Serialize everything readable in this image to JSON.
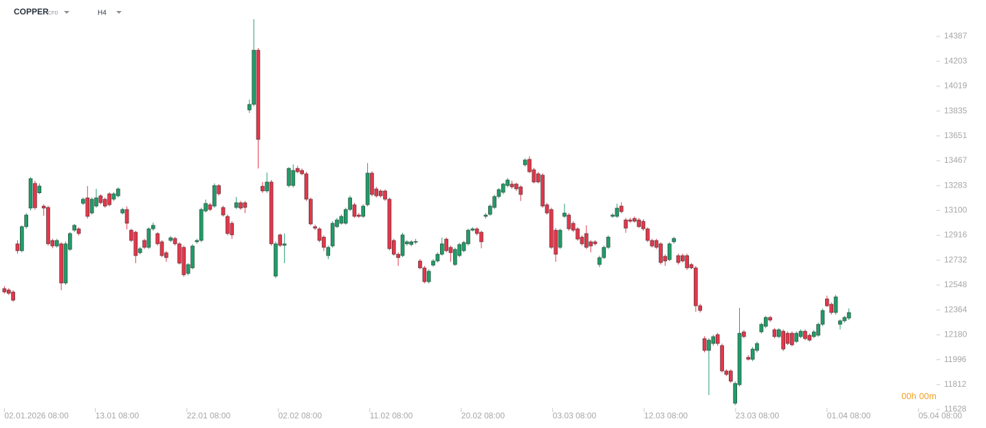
{
  "chart_data": {
    "type": "candlestick",
    "title": "COPPER",
    "subtitle": "CFD",
    "timeframe": "H4",
    "countdown": [
      "00",
      "h",
      "00",
      "m"
    ],
    "up_color": "#1f9d68",
    "down_color": "#e5364b",
    "ylim": [
      11608,
      14656
    ],
    "yticks": [
      11628,
      11812,
      11996,
      12180,
      12364,
      12548,
      12732,
      12916,
      13100,
      13283,
      13467,
      13651,
      13835,
      14019,
      14203,
      14387
    ],
    "xlim": [
      -1,
      212.7
    ],
    "xticks": [
      {
        "value": 0,
        "label": "02.01.2026 08:00"
      },
      {
        "value": 20.8,
        "label": "13.01 08:00"
      },
      {
        "value": 41.7,
        "label": "22.01 08:00"
      },
      {
        "value": 62.6,
        "label": "02.02 08:00"
      },
      {
        "value": 83.5,
        "label": "11.02 08:00"
      },
      {
        "value": 104.4,
        "label": "20.02 08:00"
      },
      {
        "value": 125.3,
        "label": "03.03 08:00"
      },
      {
        "value": 146.2,
        "label": "12.03 08:00"
      },
      {
        "value": 167.1,
        "label": "23.03 08:00"
      },
      {
        "value": 188,
        "label": "01.04 08:00"
      },
      {
        "value": 208.9,
        "label": "05.04 08:00"
      }
    ],
    "ohlc": [
      [
        12522,
        12540,
        12485,
        12497
      ],
      [
        12512,
        12525,
        12475,
        12487
      ],
      [
        12497,
        12510,
        12425,
        12436
      ],
      [
        12853,
        12880,
        12780,
        12802
      ],
      [
        12802,
        12990,
        12790,
        12980
      ],
      [
        12980,
        13080,
        12965,
        13066
      ],
      [
        13117,
        13346,
        13100,
        13335
      ],
      [
        13300,
        13320,
        13105,
        13120
      ],
      [
        13230,
        13300,
        13220,
        13280
      ],
      [
        13132,
        13145,
        13060,
        13117
      ],
      [
        13122,
        13135,
        12840,
        12853
      ],
      [
        12878,
        12890,
        12820,
        12837
      ],
      [
        12837,
        12890,
        12825,
        12878
      ],
      [
        12853,
        12865,
        12510,
        12563
      ],
      [
        12563,
        12870,
        12550,
        12853
      ],
      [
        12812,
        12940,
        12800,
        12929
      ],
      [
        12954,
        13000,
        12940,
        12990
      ],
      [
        12964,
        12975,
        12915,
        12929
      ],
      [
        13152,
        13195,
        13140,
        13183
      ],
      [
        13193,
        13280,
        13040,
        13056
      ],
      [
        13081,
        13195,
        13070,
        13183
      ],
      [
        13132,
        13260,
        13120,
        13193
      ],
      [
        13208,
        13220,
        13145,
        13157
      ],
      [
        13183,
        13195,
        13120,
        13132
      ],
      [
        13223,
        13235,
        13130,
        13142
      ],
      [
        13183,
        13235,
        13170,
        13223
      ],
      [
        13208,
        13270,
        13195,
        13259
      ],
      [
        13081,
        13120,
        13070,
        13107
      ],
      [
        13107,
        13130,
        12960,
        13005
      ],
      [
        12954,
        12965,
        12865,
        12878
      ],
      [
        12939,
        12950,
        12710,
        12766
      ],
      [
        12787,
        12830,
        12775,
        12817
      ],
      [
        12878,
        12890,
        12815,
        12827
      ],
      [
        12827,
        12975,
        12815,
        12964
      ],
      [
        12964,
        13010,
        12950,
        12990
      ],
      [
        12929,
        12940,
        12840,
        12853
      ],
      [
        12868,
        12880,
        12755,
        12766
      ],
      [
        12787,
        12800,
        12720,
        12751
      ],
      [
        12878,
        12910,
        12865,
        12898
      ],
      [
        12893,
        12905,
        12840,
        12853
      ],
      [
        12853,
        12865,
        12700,
        12710
      ],
      [
        12827,
        12840,
        12610,
        12624
      ],
      [
        12634,
        12710,
        12620,
        12700
      ],
      [
        12675,
        12850,
        12665,
        12837
      ],
      [
        12868,
        12890,
        12855,
        12878
      ],
      [
        12878,
        13120,
        12865,
        13107
      ],
      [
        13096,
        13180,
        13085,
        13152
      ],
      [
        13142,
        13155,
        13095,
        13107
      ],
      [
        13132,
        13300,
        13120,
        13284
      ],
      [
        13284,
        13295,
        13210,
        13223
      ],
      [
        13122,
        13135,
        13055,
        13066
      ],
      [
        13056,
        13070,
        12915,
        12929
      ],
      [
        13005,
        13020,
        12890,
        12919
      ],
      [
        13122,
        13200,
        13110,
        13157
      ],
      [
        13157,
        13170,
        13105,
        13117
      ],
      [
        13157,
        13170,
        13080,
        13122
      ],
      [
        13843,
        13920,
        13820,
        13884
      ],
      [
        13884,
        14514,
        13870,
        14285
      ],
      [
        14285,
        14300,
        13410,
        13625
      ],
      [
        13279,
        13310,
        13230,
        13244
      ],
      [
        13244,
        13380,
        13230,
        13310
      ],
      [
        13310,
        13325,
        12840,
        12853
      ],
      [
        12614,
        12870,
        12600,
        12853
      ],
      [
        12919,
        12930,
        12830,
        12842
      ],
      [
        12842,
        12930,
        12710,
        12853
      ],
      [
        13284,
        13420,
        13270,
        13411
      ],
      [
        13284,
        13440,
        13270,
        13396
      ],
      [
        13411,
        13430,
        13375,
        13386
      ],
      [
        13396,
        13410,
        13360,
        13371
      ],
      [
        13371,
        13385,
        13170,
        13183
      ],
      [
        13183,
        13195,
        12990,
        13000
      ],
      [
        12980,
        12995,
        12955,
        12969
      ],
      [
        12964,
        12975,
        12865,
        12878
      ],
      [
        12903,
        12915,
        12800,
        12827
      ],
      [
        12766,
        12840,
        12740,
        12827
      ],
      [
        12837,
        13020,
        12825,
        13005
      ],
      [
        12980,
        13045,
        12970,
        13030
      ],
      [
        13005,
        13070,
        12995,
        13056
      ],
      [
        13005,
        13120,
        12995,
        13107
      ],
      [
        13107,
        13210,
        13095,
        13193
      ],
      [
        13142,
        13155,
        13045,
        13056
      ],
      [
        13066,
        13080,
        13045,
        13056
      ],
      [
        13056,
        13145,
        13045,
        13132
      ],
      [
        13142,
        13450,
        13130,
        13376
      ],
      [
        13376,
        13390,
        13205,
        13218
      ],
      [
        13259,
        13275,
        13195,
        13208
      ],
      [
        13244,
        13255,
        13195,
        13208
      ],
      [
        13244,
        13255,
        13170,
        13183
      ],
      [
        13183,
        13195,
        12805,
        12817
      ],
      [
        12878,
        12890,
        12765,
        12776
      ],
      [
        12776,
        12790,
        12690,
        12751
      ],
      [
        12766,
        12935,
        12755,
        12919
      ],
      [
        12853,
        12880,
        12840,
        12868
      ],
      [
        12848,
        12880,
        12835,
        12868
      ],
      [
        12865,
        12890,
        12850,
        12870
      ],
      [
        12726,
        12740,
        12665,
        12675
      ],
      [
        12675,
        12690,
        12560,
        12573
      ],
      [
        12573,
        12665,
        12560,
        12650
      ],
      [
        12695,
        12740,
        12685,
        12726
      ],
      [
        12726,
        12790,
        12715,
        12776
      ],
      [
        12776,
        12900,
        12765,
        12853
      ],
      [
        12888,
        12900,
        12790,
        12802
      ],
      [
        12827,
        12840,
        12720,
        12787
      ],
      [
        12700,
        12825,
        12690,
        12812
      ],
      [
        12766,
        12860,
        12755,
        12848
      ],
      [
        12802,
        12875,
        12790,
        12863
      ],
      [
        12853,
        12965,
        12840,
        12954
      ],
      [
        12954,
        12975,
        12945,
        12964
      ],
      [
        12964,
        12975,
        12915,
        12929
      ],
      [
        12939,
        12950,
        12820,
        12868
      ],
      [
        13056,
        13080,
        13040,
        13066
      ],
      [
        13071,
        13145,
        13060,
        13132
      ],
      [
        13122,
        13215,
        13110,
        13203
      ],
      [
        13203,
        13265,
        13190,
        13254
      ],
      [
        13234,
        13305,
        13220,
        13295
      ],
      [
        13284,
        13340,
        13270,
        13325
      ],
      [
        13295,
        13320,
        13260,
        13274
      ],
      [
        13295,
        13305,
        13245,
        13259
      ],
      [
        13274,
        13285,
        13170,
        13218
      ],
      [
        13437,
        13485,
        13425,
        13473
      ],
      [
        13478,
        13500,
        13375,
        13386
      ],
      [
        13401,
        13415,
        13300,
        13310
      ],
      [
        13371,
        13385,
        13300,
        13310
      ],
      [
        13361,
        13375,
        13120,
        13132
      ],
      [
        13142,
        13155,
        13070,
        13081
      ],
      [
        13107,
        13120,
        12815,
        12827
      ],
      [
        12954,
        12970,
        12720,
        12776
      ],
      [
        12827,
        12965,
        12815,
        12954
      ],
      [
        13056,
        13150,
        13045,
        13081
      ],
      [
        13066,
        13080,
        12950,
        12964
      ],
      [
        13005,
        13020,
        12940,
        12954
      ],
      [
        12964,
        12975,
        12875,
        12888
      ],
      [
        12903,
        12915,
        12840,
        12853
      ],
      [
        12929,
        12990,
        12815,
        12827
      ],
      [
        12868,
        12880,
        12790,
        12837
      ],
      [
        12868,
        12880,
        12840,
        12853
      ],
      [
        12700,
        12765,
        12680,
        12751
      ],
      [
        12751,
        12840,
        12740,
        12827
      ],
      [
        12827,
        12915,
        12815,
        12903
      ],
      [
        13056,
        13080,
        13045,
        13066
      ],
      [
        13056,
        13150,
        13045,
        13117
      ],
      [
        13132,
        13160,
        13080,
        13091
      ],
      [
        13030,
        13045,
        12935,
        12969
      ],
      [
        13030,
        13045,
        13010,
        13020
      ],
      [
        13041,
        13055,
        13010,
        13020
      ],
      [
        13030,
        13045,
        12970,
        12980
      ],
      [
        13020,
        13035,
        12950,
        12964
      ],
      [
        12964,
        12975,
        12865,
        12878
      ],
      [
        12878,
        12890,
        12825,
        12837
      ],
      [
        12878,
        12890,
        12815,
        12827
      ],
      [
        12853,
        12865,
        12700,
        12715
      ],
      [
        12761,
        12775,
        12690,
        12726
      ],
      [
        12736,
        12865,
        12725,
        12853
      ],
      [
        12868,
        12905,
        12855,
        12893
      ],
      [
        12766,
        12780,
        12700,
        12715
      ],
      [
        12766,
        12780,
        12715,
        12726
      ],
      [
        12766,
        12780,
        12660,
        12675
      ],
      [
        12700,
        12710,
        12665,
        12675
      ],
      [
        12675,
        12690,
        12350,
        12395
      ],
      [
        12395,
        12410,
        12345,
        12360
      ],
      [
        12152,
        12170,
        12050,
        12065
      ],
      [
        12065,
        12155,
        11735,
        12141
      ],
      [
        12116,
        12180,
        12100,
        12167
      ],
      [
        12182,
        12195,
        12100,
        12116
      ],
      [
        12101,
        12115,
        11900,
        11913
      ],
      [
        11913,
        11925,
        11875,
        11887
      ],
      [
        11913,
        11925,
        11825,
        11837
      ],
      [
        11674,
        11835,
        11660,
        11821
      ],
      [
        11811,
        12380,
        11800,
        12192
      ],
      [
        12202,
        12215,
        12155,
        12167
      ],
      [
        12014,
        12030,
        11990,
        11999
      ],
      [
        11999,
        12090,
        11985,
        12075
      ],
      [
        12065,
        12130,
        12050,
        12116
      ],
      [
        12202,
        12270,
        12190,
        12258
      ],
      [
        12243,
        12320,
        12230,
        12309
      ],
      [
        12309,
        12320,
        12275,
        12289
      ],
      [
        12218,
        12230,
        12155,
        12167
      ],
      [
        12167,
        12230,
        12155,
        12218
      ],
      [
        12207,
        12220,
        12060,
        12075
      ],
      [
        12192,
        12205,
        12105,
        12116
      ],
      [
        12192,
        12205,
        12095,
        12106
      ],
      [
        12131,
        12205,
        12120,
        12192
      ],
      [
        12167,
        12220,
        12155,
        12207
      ],
      [
        12207,
        12220,
        12140,
        12152
      ],
      [
        12177,
        12190,
        12130,
        12141
      ],
      [
        12167,
        12215,
        12155,
        12202
      ],
      [
        12177,
        12270,
        12165,
        12258
      ],
      [
        12258,
        12375,
        12245,
        12360
      ],
      [
        12446,
        12470,
        12385,
        12395
      ],
      [
        12406,
        12420,
        12330,
        12345
      ],
      [
        12345,
        12475,
        12330,
        12461
      ],
      [
        12258,
        12295,
        12220,
        12284
      ],
      [
        12284,
        12320,
        12270,
        12309
      ],
      [
        12304,
        12375,
        12290,
        12345
      ]
    ]
  }
}
